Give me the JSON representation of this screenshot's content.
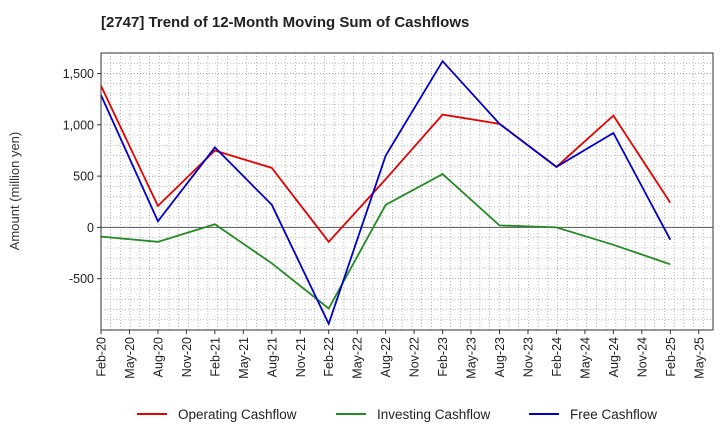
{
  "chart_data": {
    "type": "line",
    "title": "[2747]  Trend of 12-Month Moving Sum of Cashflows",
    "ylabel": "Amount (million yen)",
    "xlabel": "",
    "x": [
      "Feb-20",
      "May-20",
      "Aug-20",
      "Nov-20",
      "Feb-21",
      "May-21",
      "Aug-21",
      "Nov-21",
      "Feb-22",
      "May-22",
      "Aug-22",
      "Nov-22",
      "Feb-23",
      "May-23",
      "Aug-23",
      "Nov-23",
      "Feb-24",
      "May-24",
      "Aug-24",
      "Nov-24",
      "Feb-25",
      "May-25"
    ],
    "yticks": [
      -500,
      0,
      500,
      1000,
      1500
    ],
    "ytick_labels": [
      "-500",
      "0",
      "500",
      "1,000",
      "1,500"
    ],
    "ylim": [
      -1000,
      1700
    ],
    "grid": true,
    "legend_position": "bottom",
    "series": [
      {
        "name": "Operating Cashflow",
        "color": "#e60000",
        "x": [
          "Feb-20",
          "Aug-20",
          "Feb-21",
          "Aug-21",
          "Feb-22",
          "Aug-22",
          "Feb-23",
          "Aug-23",
          "Feb-24",
          "Aug-24",
          "Feb-25"
        ],
        "values": [
          1380,
          210,
          750,
          580,
          -140,
          470,
          1100,
          1010,
          590,
          1090,
          240
        ]
      },
      {
        "name": "Investing Cashflow",
        "color": "#228b22",
        "x": [
          "Feb-20",
          "Aug-20",
          "Feb-21",
          "Aug-21",
          "Feb-22",
          "Aug-22",
          "Feb-23",
          "Aug-23",
          "Feb-24",
          "Aug-24",
          "Feb-25"
        ],
        "values": [
          -90,
          -140,
          30,
          -350,
          -790,
          220,
          520,
          20,
          0,
          -170,
          -360
        ]
      },
      {
        "name": "Free Cashflow",
        "color": "#0000cc",
        "x": [
          "Feb-20",
          "Aug-20",
          "Feb-21",
          "Aug-21",
          "Feb-22",
          "Aug-22",
          "Feb-23",
          "Aug-23",
          "Feb-24",
          "Aug-24",
          "Feb-25"
        ],
        "values": [
          1290,
          60,
          780,
          220,
          -940,
          700,
          1620,
          1010,
          590,
          920,
          -120
        ]
      }
    ]
  }
}
